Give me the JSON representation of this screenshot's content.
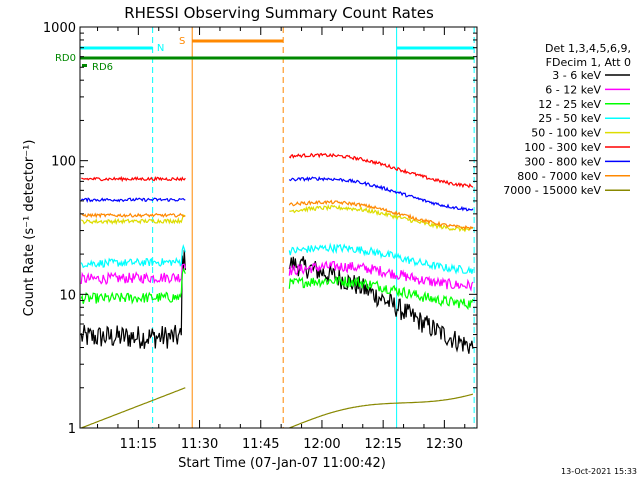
{
  "chart_data": {
    "type": "line",
    "title": "RHESSI Observing Summary Count Rates",
    "xlabel": "Start Time (07-Jan-07 11:00:42)",
    "ylabel": "Count Rate (s⁻¹ detector⁻¹)",
    "yscale": "log",
    "ylim": [
      1,
      1000
    ],
    "xlim_minutes_after_11_00": [
      0.7,
      98
    ],
    "x_ticks": [
      {
        "label": "11:15",
        "min": 15
      },
      {
        "label": "11:30",
        "min": 30
      },
      {
        "label": "11:45",
        "min": 45
      },
      {
        "label": "12:00",
        "min": 60
      },
      {
        "label": "12:15",
        "min": 75
      },
      {
        "label": "12:30",
        "min": 90
      }
    ],
    "y_ticks": [
      {
        "label": "1",
        "value": 1
      },
      {
        "label": "10",
        "value": 10
      },
      {
        "label": "100",
        "value": 100
      },
      {
        "label": "1000",
        "value": 1000
      }
    ],
    "legend": {
      "placement": "right",
      "header": [
        "Det 1,3,4,5,6,9,",
        "FDecim 1, Att 0"
      ]
    },
    "series": [
      {
        "name": "3 - 6 keV",
        "color": "#000000",
        "segments": [
          {
            "x": [
              1,
              26.5
            ],
            "y": [
              4.8,
              4.8
            ],
            "noise": 0.09,
            "rise_to": 18
          },
          {
            "x": [
              52,
              97
            ],
            "y": [
              17,
              4.5
            ],
            "noise": 0.08
          }
        ]
      },
      {
        "name": "6 - 12 keV",
        "color": "#ff00ff",
        "segments": [
          {
            "x": [
              1,
              26.5
            ],
            "y": [
              13,
              13.5
            ],
            "noise": 0.04,
            "rise_to": 17
          },
          {
            "x": [
              52,
              97
            ],
            "y": [
              15,
              13
            ],
            "noise": 0.04
          }
        ]
      },
      {
        "name": "12 - 25 keV",
        "color": "#00ff00",
        "segments": [
          {
            "x": [
              1,
              26.5
            ],
            "y": [
              9.3,
              9.5
            ],
            "noise": 0.04,
            "rise_to": 15
          },
          {
            "x": [
              52,
              97
            ],
            "y": [
              12,
              9.5
            ],
            "noise": 0.04
          }
        ]
      },
      {
        "name": "25 - 50 keV",
        "color": "#00ffff",
        "segments": [
          {
            "x": [
              1,
              26.5
            ],
            "y": [
              17,
              17.5
            ],
            "noise": 0.03,
            "rise_to": 22
          },
          {
            "x": [
              52,
              97
            ],
            "y": [
              21,
              17
            ],
            "noise": 0.03
          }
        ]
      },
      {
        "name": "50 - 100 keV",
        "color": "#dddd00",
        "segments": [
          {
            "x": [
              1,
              26.5
            ],
            "y": [
              35,
              35.5
            ],
            "noise": 0.015,
            "rise_to": 38
          },
          {
            "x": [
              52,
              97
            ],
            "y": [
              42,
              34
            ],
            "noise": 0.015
          }
        ]
      },
      {
        "name": "100 - 300 keV",
        "color": "#ff0000",
        "segments": [
          {
            "x": [
              1,
              26.5
            ],
            "y": [
              73,
              73
            ],
            "noise": 0.012
          },
          {
            "x": [
              52,
              97
            ],
            "y": [
              108,
              72
            ],
            "noise": 0.012
          }
        ]
      },
      {
        "name": "300 - 800 keV",
        "color": "#0000ff",
        "segments": [
          {
            "x": [
              1,
              26.5
            ],
            "y": [
              51,
              51
            ],
            "noise": 0.012
          },
          {
            "x": [
              52,
              97
            ],
            "y": [
              72,
              48
            ],
            "noise": 0.012
          }
        ]
      },
      {
        "name": "800 - 7000 keV",
        "color": "#ff8800",
        "segments": [
          {
            "x": [
              1,
              26.5
            ],
            "y": [
              39,
              39
            ],
            "noise": 0.012
          },
          {
            "x": [
              52,
              97
            ],
            "y": [
              47,
              35
            ],
            "noise": 0.012
          }
        ]
      },
      {
        "name": "7000 - 15000 keV",
        "color": "#888800",
        "segments": [
          {
            "x": [
              1,
              26.5
            ],
            "y": [
              1,
              2
            ],
            "noise": 0,
            "binary": true
          },
          {
            "x": [
              52,
              97
            ],
            "y": [
              1,
              2
            ],
            "noise": 0,
            "binary": true
          }
        ]
      }
    ],
    "annotations": {
      "vertical_lines": [
        {
          "min": 0.7,
          "color": "#00ffff",
          "dash": false
        },
        {
          "min": 18.5,
          "color": "#00ffff",
          "dash": true
        },
        {
          "min": 28.2,
          "color": "#ff8800",
          "dash": false
        },
        {
          "min": 50.5,
          "color": "#ff8800",
          "dash": true
        },
        {
          "min": 78.3,
          "color": "#00ffff",
          "dash": false
        },
        {
          "min": 97.3,
          "color": "#00ffff",
          "dash": true
        }
      ],
      "horizontal_bars": [
        {
          "label": "N",
          "color": "#00ffff",
          "segments": [
            [
              0.7,
              18.5
            ],
            [
              78.3,
              97.3
            ]
          ],
          "y_level": "top"
        },
        {
          "label": "S",
          "color": "#ff8800",
          "segments": [
            [
              28.2,
              50.5
            ]
          ],
          "y_level": "upper"
        },
        {
          "label": "RD0",
          "color": "#008800",
          "segments": [
            [
              0.7,
              97.3
            ]
          ],
          "y_level": "mid"
        },
        {
          "label": "RD6",
          "color": "#008800",
          "segments": [],
          "y_level": "low"
        }
      ]
    }
  },
  "footer": {
    "timestamp": "13-Oct-2021 15:33"
  }
}
